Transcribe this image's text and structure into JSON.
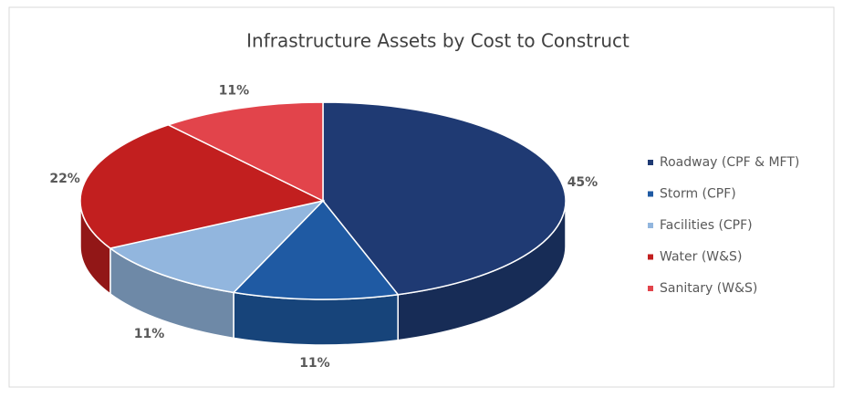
{
  "chart_data": {
    "type": "pie",
    "title": "Infrastructure Assets by Cost to Construct",
    "categories": [
      "Roadway (CPF & MFT)",
      "Storm (CPF)",
      "Facilities (CPF)",
      "Water (W&S)",
      "Sanitary (W&S)"
    ],
    "values": [
      45,
      11,
      11,
      22,
      11
    ],
    "value_labels": [
      "45%",
      "11%",
      "11%",
      "22%",
      "11%"
    ],
    "colors": [
      "#1f3a73",
      "#1f5aa3",
      "#92b6de",
      "#c21f1f",
      "#e2444b"
    ],
    "legend": "right"
  }
}
